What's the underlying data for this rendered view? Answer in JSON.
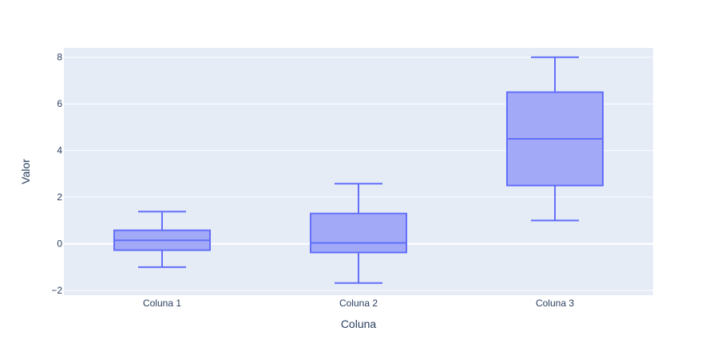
{
  "chart_data": {
    "type": "box",
    "title": "",
    "xlabel": "Coluna",
    "ylabel": "Valor",
    "categories": [
      "Coluna 1",
      "Coluna 2",
      "Coluna 3"
    ],
    "boxes": [
      {
        "category": "Coluna 1",
        "lower_whisker": -1.0,
        "q1": -0.27,
        "median": 0.15,
        "q3": 0.58,
        "upper_whisker": 1.38
      },
      {
        "category": "Coluna 2",
        "lower_whisker": -1.68,
        "q1": -0.37,
        "median": 0.04,
        "q3": 1.3,
        "upper_whisker": 2.58
      },
      {
        "category": "Coluna 3",
        "lower_whisker": 1.0,
        "q1": 2.5,
        "median": 4.5,
        "q3": 6.5,
        "upper_whisker": 8.0
      }
    ],
    "y_ticks": [
      -2,
      0,
      2,
      4,
      6,
      8
    ],
    "y_tick_labels": [
      "−2",
      "0",
      "2",
      "4",
      "6",
      "8"
    ],
    "ylim": [
      -2.2,
      8.4
    ],
    "grid": true,
    "colors": {
      "plot_bg": "#e5ecf6",
      "grid": "#ffffff",
      "box_line": "#636efa",
      "box_fill": "#a2aaf8",
      "text": "#2a3f5f"
    }
  }
}
